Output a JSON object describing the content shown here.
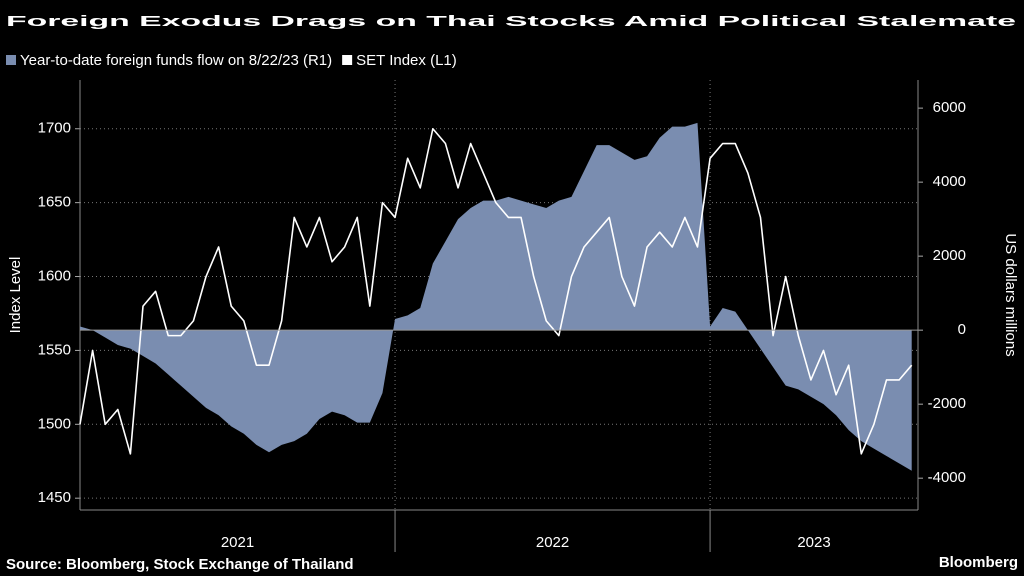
{
  "chart_data": {
    "type": "line",
    "title": "Foreign Exodus Drags on Thai Stocks Amid Political Stalemate",
    "ylabel": "Index Level",
    "y2label": "US dollars millions",
    "source": "Source: Bloomberg, Stock Exchange of Thailand",
    "brand": "Bloomberg",
    "xlim": [
      2021,
      2023.66
    ],
    "xticks": [
      {
        "value": 2021.5,
        "label": "2021"
      },
      {
        "value": 2022.5,
        "label": "2022"
      },
      {
        "value": 2023.33,
        "label": "2023"
      }
    ],
    "xgrid": [
      2022,
      2023
    ],
    "ylim": [
      1442,
      1733
    ],
    "yticks": [
      1450,
      1500,
      1550,
      1600,
      1650,
      1700
    ],
    "y2lim": [
      -4860,
      6760
    ],
    "y2ticks": [
      -4000,
      -2000,
      0,
      2000,
      4000,
      6000
    ],
    "grid": true,
    "x": [
      2021.0,
      2021.04,
      2021.08,
      2021.12,
      2021.16,
      2021.2,
      2021.24,
      2021.28,
      2021.32,
      2021.36,
      2021.4,
      2021.44,
      2021.48,
      2021.52,
      2021.56,
      2021.6,
      2021.64,
      2021.68,
      2021.72,
      2021.76,
      2021.8,
      2021.84,
      2021.88,
      2021.92,
      2021.96,
      2022.0,
      2022.04,
      2022.08,
      2022.12,
      2022.16,
      2022.2,
      2022.24,
      2022.28,
      2022.32,
      2022.36,
      2022.4,
      2022.44,
      2022.48,
      2022.52,
      2022.56,
      2022.6,
      2022.64,
      2022.68,
      2022.72,
      2022.76,
      2022.8,
      2022.84,
      2022.88,
      2022.92,
      2022.96,
      2023.0,
      2023.04,
      2023.08,
      2023.12,
      2023.16,
      2023.2,
      2023.24,
      2023.28,
      2023.32,
      2023.36,
      2023.4,
      2023.44,
      2023.48,
      2023.52,
      2023.56,
      2023.6,
      2023.64
    ],
    "series": [
      {
        "name": "Year-to-date foreign funds flow on 8/22/23 (R1)",
        "type": "area",
        "axis": "y2",
        "color": "#7a8db0",
        "values": [
          100,
          0,
          -200,
          -400,
          -500,
          -700,
          -900,
          -1200,
          -1500,
          -1800,
          -2100,
          -2300,
          -2600,
          -2800,
          -3100,
          -3300,
          -3100,
          -3000,
          -2800,
          -2400,
          -2200,
          -2300,
          -2500,
          -2500,
          -1700,
          300,
          400,
          600,
          1800,
          2400,
          3000,
          3300,
          3500,
          3500,
          3600,
          3500,
          3400,
          3300,
          3500,
          3600,
          4300,
          5000,
          5000,
          4800,
          4600,
          4700,
          5200,
          5500,
          5500,
          5600,
          100,
          600,
          500,
          0,
          -500,
          -1000,
          -1500,
          -1600,
          -1800,
          -2000,
          -2300,
          -2700,
          -3000,
          -3200,
          -3400,
          -3600,
          -3800
        ]
      },
      {
        "name": "SET Index (L1)",
        "type": "line",
        "axis": "y",
        "color": "#ffffff",
        "values": [
          1500,
          1550,
          1500,
          1510,
          1480,
          1580,
          1590,
          1560,
          1560,
          1570,
          1600,
          1620,
          1580,
          1570,
          1540,
          1540,
          1570,
          1640,
          1620,
          1640,
          1610,
          1620,
          1640,
          1580,
          1650,
          1640,
          1680,
          1660,
          1700,
          1690,
          1660,
          1690,
          1670,
          1650,
          1640,
          1640,
          1600,
          1570,
          1560,
          1600,
          1620,
          1630,
          1640,
          1600,
          1580,
          1620,
          1630,
          1620,
          1640,
          1620,
          1680,
          1690,
          1690,
          1670,
          1640,
          1560,
          1600,
          1560,
          1530,
          1550,
          1520,
          1540,
          1480,
          1500,
          1530,
          1530,
          1540
        ]
      }
    ]
  }
}
